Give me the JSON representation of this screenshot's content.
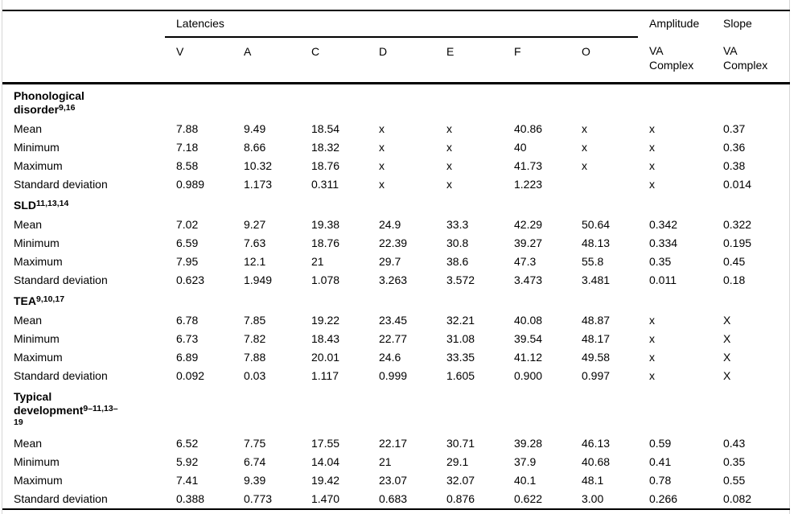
{
  "page": {
    "background": "#ffffff",
    "frame_border_color": "#d6d6d6",
    "rule_color": "#000000",
    "text_color": "#000000"
  },
  "table": {
    "header": {
      "latencies_label": "Latencies",
      "amplitude_label": "Amplitude",
      "slope_label": "Slope",
      "latency_columns": [
        "V",
        "A",
        "C",
        "D",
        "E",
        "F",
        "O"
      ],
      "amplitude_subheader": "VA Complex",
      "slope_subheader": "VA Complex"
    },
    "column_keys": [
      "v",
      "a",
      "c",
      "d",
      "e",
      "f",
      "o",
      "amplitude",
      "slope"
    ],
    "groups": [
      {
        "name": "Phonological disorder",
        "superscript": "9,16",
        "rows": [
          {
            "label": "Mean",
            "values": [
              "7.88",
              "9.49",
              "18.54",
              "x",
              "x",
              "40.86",
              "x",
              "x",
              "0.37"
            ]
          },
          {
            "label": "Minimum",
            "values": [
              "7.18",
              "8.66",
              "18.32",
              "x",
              "x",
              "40",
              "x",
              "x",
              "0.36"
            ]
          },
          {
            "label": "Maximum",
            "values": [
              "8.58",
              "10.32",
              "18.76",
              "x",
              "x",
              "41.73",
              "x",
              "x",
              "0.38"
            ]
          },
          {
            "label": "Standard deviation",
            "values": [
              "0.989",
              "1.173",
              "0.311",
              "x",
              "x",
              "1.223",
              "",
              "x",
              "0.014"
            ]
          }
        ]
      },
      {
        "name": "SLD",
        "superscript": "11,13,14",
        "rows": [
          {
            "label": "Mean",
            "values": [
              "7.02",
              "9.27",
              "19.38",
              "24.9",
              "33.3",
              "42.29",
              "50.64",
              "0.342",
              "0.322"
            ]
          },
          {
            "label": "Minimum",
            "values": [
              "6.59",
              "7.63",
              "18.76",
              "22.39",
              "30.8",
              "39.27",
              "48.13",
              "0.334",
              "0.195"
            ]
          },
          {
            "label": "Maximum",
            "values": [
              "7.95",
              "12.1",
              "21",
              "29.7",
              "38.6",
              "47.3",
              "55.8",
              "0.35",
              "0.45"
            ]
          },
          {
            "label": "Standard deviation",
            "values": [
              "0.623",
              "1.949",
              "1.078",
              "3.263",
              "3.572",
              "3.473",
              "3.481",
              "0.011",
              "0.18"
            ]
          }
        ]
      },
      {
        "name": "TEA",
        "superscript": "9,10,17",
        "rows": [
          {
            "label": "Mean",
            "values": [
              "6.78",
              "7.85",
              "19.22",
              "23.45",
              "32.21",
              "40.08",
              "48.87",
              "x",
              "X"
            ]
          },
          {
            "label": "Minimum",
            "values": [
              "6.73",
              "7.82",
              "18.43",
              "22.77",
              "31.08",
              "39.54",
              "48.17",
              "x",
              "X"
            ]
          },
          {
            "label": "Maximum",
            "values": [
              "6.89",
              "7.88",
              "20.01",
              "24.6",
              "33.35",
              "41.12",
              "49.58",
              "x",
              "X"
            ]
          },
          {
            "label": "Standard deviation",
            "values": [
              "0.092",
              "0.03",
              "1.117",
              "0.999",
              "1.605",
              "0.900",
              "0.997",
              "x",
              "X"
            ]
          }
        ]
      },
      {
        "name": "Typical development",
        "superscript": "9–11,13–19",
        "rows": [
          {
            "label": "Mean",
            "values": [
              "6.52",
              "7.75",
              "17.55",
              "22.17",
              "30.71",
              "39.28",
              "46.13",
              "0.59",
              "0.43"
            ]
          },
          {
            "label": "Minimum",
            "values": [
              "5.92",
              "6.74",
              "14.04",
              "21",
              "29.1",
              "37.9",
              "40.68",
              "0.41",
              "0.35"
            ]
          },
          {
            "label": "Maximum",
            "values": [
              "7.41",
              "9.39",
              "19.42",
              "23.07",
              "32.07",
              "40.1",
              "48.1",
              "0.78",
              "0.55"
            ]
          },
          {
            "label": "Standard deviation",
            "values": [
              "0.388",
              "0.773",
              "1.470",
              "0.683",
              "0.876",
              "0.622",
              "3.00",
              "0.266",
              "0.082"
            ]
          }
        ]
      }
    ]
  }
}
